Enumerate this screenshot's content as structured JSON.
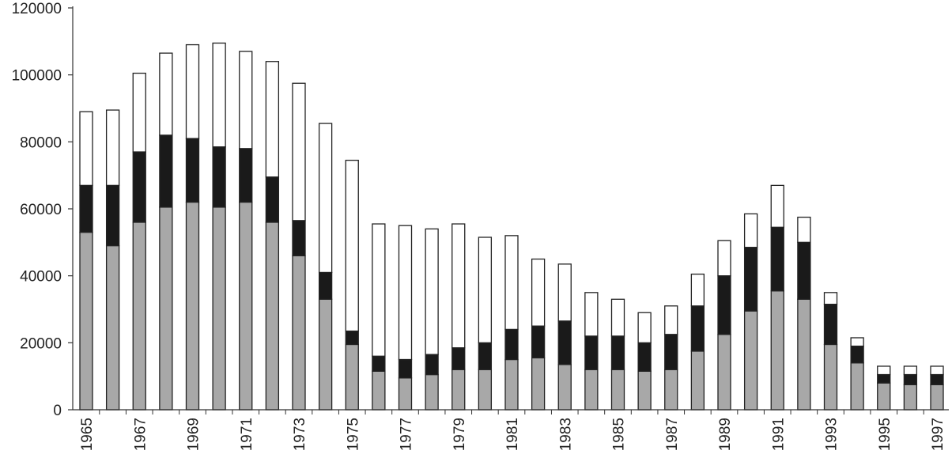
{
  "chart_data": {
    "type": "bar",
    "stacked": true,
    "title": "",
    "xlabel": "",
    "ylabel": "",
    "ylim": [
      0,
      120000
    ],
    "yticks": [
      0,
      20000,
      40000,
      60000,
      80000,
      100000,
      120000
    ],
    "ytick_labels": [
      "0",
      "20000",
      "40000",
      "60000",
      "80000",
      "100000",
      "120000"
    ],
    "categories": [
      "1965",
      "1966",
      "1967",
      "1968",
      "1969",
      "1970",
      "1971",
      "1972",
      "1973",
      "1974",
      "1975",
      "1976",
      "1977",
      "1978",
      "1979",
      "1980",
      "1981",
      "1982",
      "1983",
      "1984",
      "1985",
      "1986",
      "1987",
      "1988",
      "1989",
      "1990",
      "1991",
      "1992",
      "1993",
      "1994",
      "1995",
      "1996",
      "1997"
    ],
    "labeled_categories": [
      "1965",
      "1967",
      "1969",
      "1971",
      "1973",
      "1975",
      "1977",
      "1979",
      "1981",
      "1983",
      "1985",
      "1987",
      "1989",
      "1991",
      "1993",
      "1995",
      "1997"
    ],
    "grid": false,
    "legend": "none",
    "series": [
      {
        "color": "#a8a8a8",
        "values": [
          53000,
          49000,
          56000,
          60500,
          62000,
          60500,
          62000,
          56000,
          46000,
          33000,
          19500,
          11500,
          9500,
          10500,
          12000,
          12000,
          15000,
          15500,
          13500,
          12000,
          12000,
          11500,
          12000,
          17500,
          22500,
          29500,
          35500,
          33000,
          19500,
          14000,
          8000,
          7500,
          7500
        ]
      },
      {
        "color": "#1a1a1a",
        "values": [
          14000,
          18000,
          21000,
          21500,
          19000,
          18000,
          16000,
          13500,
          10500,
          8000,
          4000,
          4500,
          5500,
          6000,
          6500,
          8000,
          9000,
          9500,
          13000,
          10000,
          10000,
          8500,
          10500,
          13500,
          17500,
          19000,
          19000,
          17000,
          12000,
          5000,
          2500,
          3000,
          3000
        ]
      },
      {
        "color": "#ffffff",
        "values": [
          22000,
          22500,
          23500,
          24500,
          28000,
          31000,
          29000,
          34500,
          41000,
          44500,
          51000,
          39500,
          40000,
          37500,
          37000,
          31500,
          28000,
          20000,
          17000,
          13000,
          11000,
          9000,
          8500,
          9500,
          10500,
          10000,
          12500,
          7500,
          3500,
          2500,
          2500,
          2500,
          2500
        ]
      }
    ]
  }
}
